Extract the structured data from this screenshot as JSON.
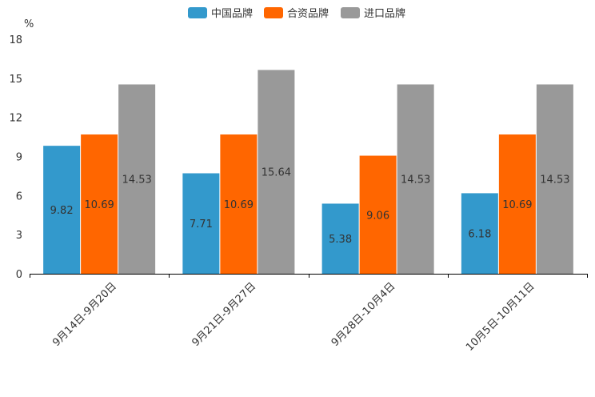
{
  "chart_data": {
    "type": "bar",
    "title": "",
    "xlabel": "",
    "ylabel": "%",
    "ylim": [
      0,
      18
    ],
    "yticks": [
      0,
      3,
      6,
      9,
      12,
      15,
      18
    ],
    "grid": false,
    "legend_position": "top-center",
    "categories": [
      "9月14日-9月20日",
      "9月21日-9月27日",
      "9月28日-10月4日",
      "10月5日-10月11日"
    ],
    "series": [
      {
        "name": "中国品牌",
        "color": "#3399CC",
        "values": [
          9.82,
          7.71,
          5.38,
          6.18
        ],
        "labels": [
          "9.82",
          "7.71",
          "5.38",
          "6.18"
        ]
      },
      {
        "name": "合资品牌",
        "color": "#FF6600",
        "values": [
          10.69,
          10.69,
          9.06,
          10.69
        ],
        "labels": [
          "10.69",
          "10.69",
          "9.06",
          "10.69"
        ]
      },
      {
        "name": "进口品牌",
        "color": "#999999",
        "values": [
          14.53,
          15.64,
          14.53,
          14.53
        ],
        "labels": [
          "14.53",
          "15.64",
          "14.53",
          "14.53"
        ]
      }
    ]
  }
}
